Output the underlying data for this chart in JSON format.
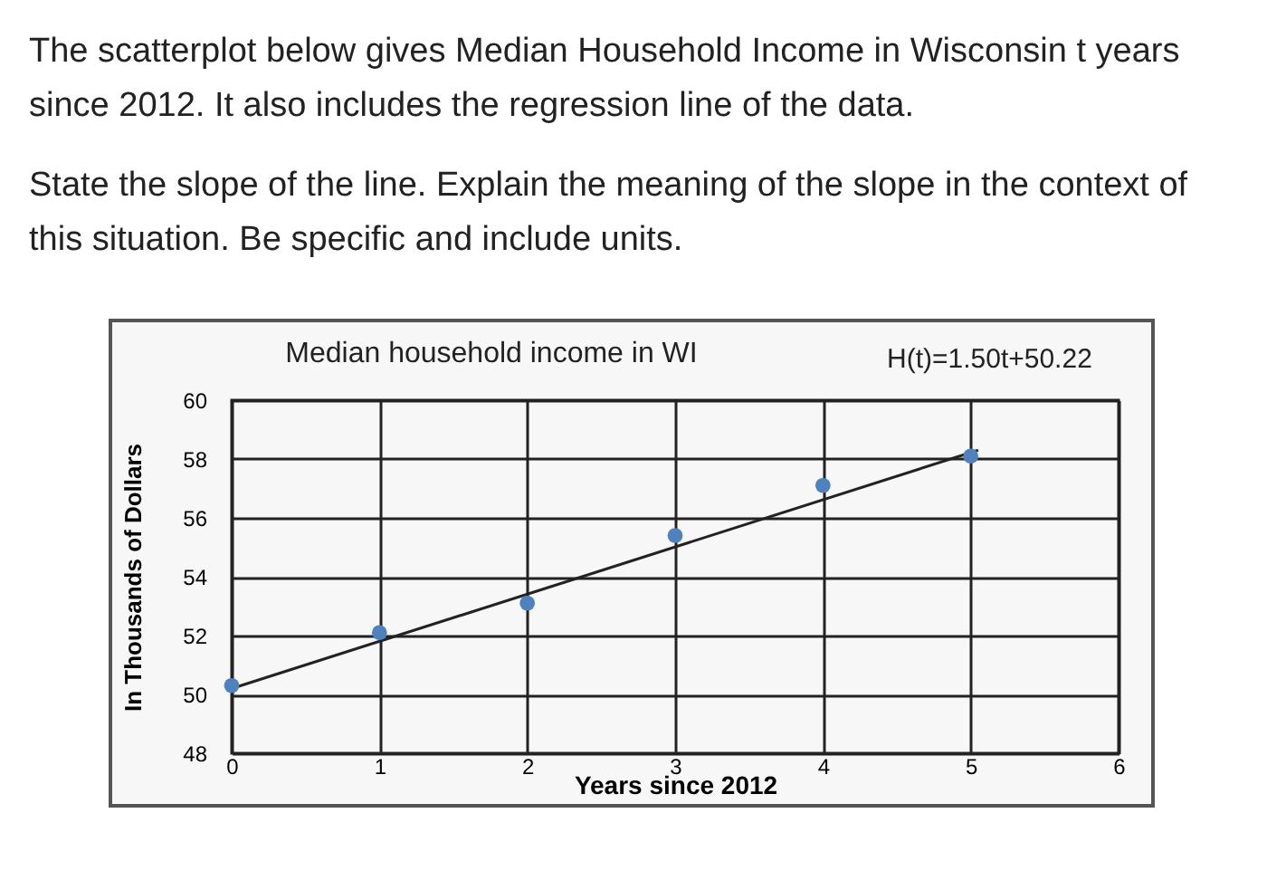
{
  "chart_data": {
    "type": "scatter",
    "title": "Median household income in WI",
    "xlabel": "Years since 2012",
    "ylabel": "In Thousands of Dollars",
    "annotations": [
      "The scatterplot below gives Median Household Income in Wisconsin t years since 2012. It also includes the regression line of the data.",
      "State the slope of the line. Explain the meaning of the slope in the context of this situation. Be specific and include units.",
      "H(t)=1.50t+50.22"
    ],
    "x": [
      0,
      1,
      2,
      3,
      4,
      5
    ],
    "series": [
      {
        "type": "scatter",
        "color": "#4f81bd",
        "marker": "circle",
        "values": [
          50.3,
          52.1,
          53.1,
          55.4,
          57.1,
          58.1
        ]
      },
      {
        "type": "line",
        "color": "#222222",
        "x": [
          0,
          5.05
        ],
        "values": [
          50.2,
          58.3
        ]
      }
    ],
    "xlim": [
      0,
      6
    ],
    "xticks": [
      0,
      1,
      2,
      3,
      4,
      5,
      6
    ],
    "ylim": [
      48,
      60
    ],
    "yticks": [
      48,
      50,
      52,
      54,
      56,
      58,
      60
    ],
    "grid": true,
    "line_style": "solid"
  }
}
